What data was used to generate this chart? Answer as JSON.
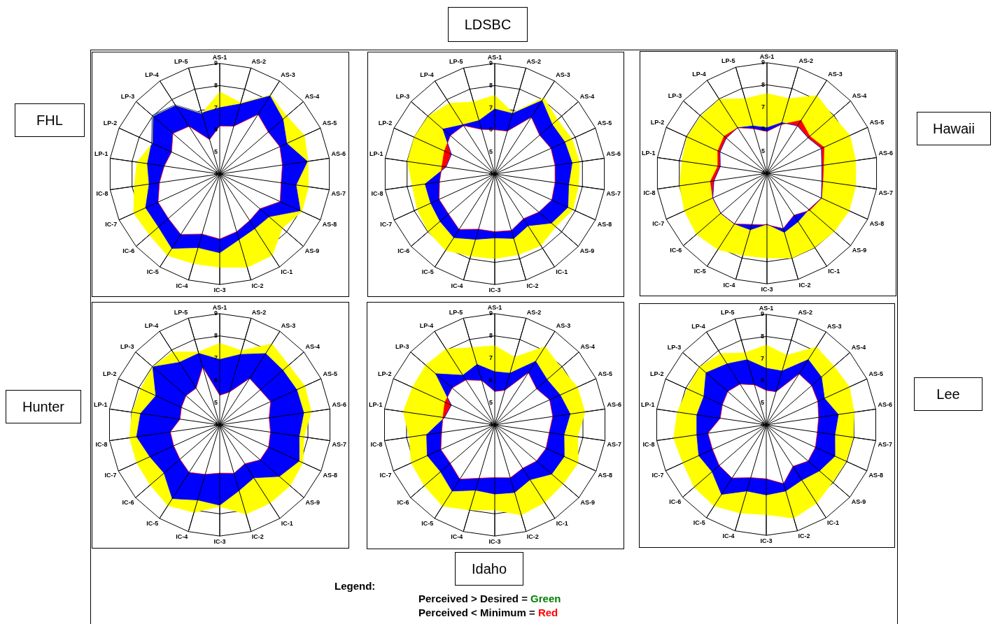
{
  "chart_data": [
    {
      "type": "radar",
      "title": "FHL",
      "categories": [
        "AS-1",
        "AS-2",
        "AS-3",
        "AS-4",
        "AS-5",
        "AS-6",
        "AS-7",
        "AS-8",
        "AS-9",
        "IC-1",
        "IC-2",
        "IC-3",
        "IC-4",
        "IC-5",
        "IC-6",
        "IC-7",
        "IC-8",
        "LP-1",
        "LP-2",
        "LP-3",
        "LP-4",
        "LP-5"
      ],
      "ylim": [
        4,
        9
      ],
      "yticks": [
        4,
        5,
        6,
        7,
        8,
        9
      ],
      "grid": true,
      "series": [
        {
          "color": "#ffff00",
          "values": [
            7.72,
            7.36,
            8.25,
            8.0,
            8.2,
            8.03,
            8.05,
            8.08,
            7.74,
            8.38,
            8.4,
            8.22,
            8.22,
            8.38,
            8.2,
            8.27,
            7.9,
            7.77,
            7.35,
            8.0,
            7.7,
            6.85
          ]
        },
        {
          "color": "#0000ff",
          "values": [
            7.0,
            7.3,
            8.2,
            7.78,
            7.33,
            8.0,
            7.48,
            8.0,
            6.95,
            6.93,
            7.09,
            7.56,
            7.47,
            8.0,
            7.66,
            7.68,
            7.22,
            7.3,
            7.38,
            8.04,
            7.72,
            6.88
          ]
        },
        {
          "color": "#ff0000",
          "values": [
            6.17,
            6.25,
            7.2,
            6.9,
            6.98,
            6.86,
            6.8,
            7.0,
            6.4,
            6.5,
            6.72,
            6.94,
            6.83,
            7.25,
            7.07,
            7.06,
            6.75,
            6.53,
            6.39,
            6.8,
            6.56,
            5.62
          ]
        }
      ]
    },
    {
      "type": "radar",
      "title": "LDSBC",
      "categories": [
        "AS-1",
        "AS-2",
        "AS-3",
        "AS-4",
        "AS-5",
        "AS-6",
        "AS-7",
        "AS-8",
        "AS-9",
        "IC-1",
        "IC-2",
        "IC-3",
        "IC-4",
        "IC-5",
        "IC-6",
        "IC-7",
        "IC-8",
        "LP-1",
        "LP-2",
        "LP-3",
        "LP-4",
        "LP-5"
      ],
      "ylim": [
        4,
        9
      ],
      "yticks": [
        4,
        5,
        6,
        7,
        8,
        9
      ],
      "grid": true,
      "series": [
        {
          "color": "#ffff00",
          "values": [
            7.56,
            6.89,
            8.1,
            7.75,
            7.83,
            7.87,
            7.82,
            7.88,
            7.64,
            7.85,
            7.8,
            7.83,
            7.87,
            8.1,
            7.98,
            7.85,
            7.76,
            7.98,
            8.0,
            7.98,
            7.8,
            7.4
          ]
        },
        {
          "color": "#0000ff",
          "values": [
            6.94,
            6.85,
            7.95,
            7.43,
            7.48,
            7.53,
            7.37,
            7.63,
            7.39,
            6.78,
            7.04,
            6.89,
            7.08,
            7.42,
            7.27,
            7.18,
            7.18,
            6.22,
            6.15,
            7.1,
            6.65,
            6.52
          ]
        },
        {
          "color": "#ff0000",
          "values": [
            6.0,
            6.02,
            7.05,
            6.68,
            6.79,
            6.75,
            6.75,
            6.83,
            6.63,
            6.4,
            6.66,
            6.61,
            6.6,
            6.98,
            6.76,
            6.76,
            6.52,
            6.41,
            6.5,
            6.65,
            6.6,
            6.1
          ]
        }
      ]
    },
    {
      "type": "radar",
      "title": "Hawaii",
      "categories": [
        "AS-1",
        "AS-2",
        "AS-3",
        "AS-4",
        "AS-5",
        "AS-6",
        "AS-7",
        "AS-8",
        "AS-9",
        "IC-1",
        "IC-2",
        "IC-3",
        "IC-4",
        "IC-5",
        "IC-6",
        "IC-7",
        "IC-8",
        "LP-1",
        "LP-2",
        "LP-3",
        "LP-4",
        "LP-5"
      ],
      "ylim": [
        4,
        9
      ],
      "yticks": [
        4,
        5,
        6,
        7,
        8,
        9
      ],
      "grid": true,
      "series": [
        {
          "color": "#ffff00",
          "values": [
            7.61,
            7.52,
            8.18,
            7.95,
            8.12,
            8.05,
            8.05,
            8.08,
            8.02,
            7.98,
            7.99,
            7.83,
            7.87,
            8.1,
            8.21,
            8.1,
            7.98,
            7.88,
            7.97,
            7.94,
            7.98,
            7.52
          ]
        },
        {
          "color": "#0000ff",
          "values": [
            6.06,
            6.39,
            6.55,
            6.45,
            6.7,
            6.5,
            6.5,
            6.7,
            6.5,
            6.6,
            6.78,
            6.3,
            6.66,
            6.72,
            6.76,
            6.69,
            6.42,
            6.13,
            6.33,
            6.43,
            6.45,
            6.23
          ]
        },
        {
          "color": "#ff0000",
          "values": [
            5.89,
            6.3,
            6.85,
            6.56,
            6.83,
            6.58,
            6.55,
            6.71,
            6.56,
            6.25,
            6.6,
            6.33,
            6.41,
            6.72,
            6.76,
            6.69,
            6.58,
            6.24,
            6.44,
            6.56,
            6.45,
            6.1
          ]
        }
      ]
    },
    {
      "type": "radar",
      "title": "Hunter",
      "categories": [
        "AS-1",
        "AS-2",
        "AS-3",
        "AS-4",
        "AS-5",
        "AS-6",
        "AS-7",
        "AS-8",
        "AS-9",
        "IC-1",
        "IC-2",
        "IC-3",
        "IC-4",
        "IC-5",
        "IC-6",
        "IC-7",
        "IC-8",
        "LP-1",
        "LP-2",
        "LP-3",
        "LP-4",
        "LP-5"
      ],
      "ylim": [
        4,
        9
      ],
      "yticks": [
        4,
        5,
        6,
        7,
        8,
        9
      ],
      "grid": true,
      "series": [
        {
          "color": "#ffff00",
          "values": [
            7.67,
            7.48,
            8.33,
            8.1,
            8.2,
            8.15,
            7.82,
            8.1,
            8.18,
            8.18,
            8.18,
            7.67,
            8.1,
            8.31,
            8.13,
            8.1,
            8.09,
            7.98,
            7.9,
            7.98,
            7.9,
            7.41
          ]
        },
        {
          "color": "#0000ff",
          "values": [
            6.94,
            7.3,
            7.81,
            7.75,
            7.8,
            7.81,
            7.6,
            7.92,
            7.54,
            6.83,
            7.08,
            7.61,
            7.52,
            7.94,
            7.31,
            7.45,
            7.77,
            7.59,
            7.15,
            7.98,
            7.34,
            7.35
          ]
        },
        {
          "color": "#ff0000",
          "values": [
            5.33,
            5.53,
            6.48,
            6.4,
            6.51,
            6.24,
            6.3,
            6.41,
            6.4,
            6.08,
            6.27,
            6.17,
            6.32,
            6.54,
            6.36,
            6.27,
            6.24,
            5.8,
            5.89,
            6.0,
            5.96,
            6.71
          ]
        }
      ]
    },
    {
      "type": "radar",
      "title": "Idaho",
      "categories": [
        "AS-1",
        "AS-2",
        "AS-3",
        "AS-4",
        "AS-5",
        "AS-6",
        "AS-7",
        "AS-8",
        "AS-9",
        "IC-1",
        "IC-2",
        "IC-3",
        "IC-4",
        "IC-5",
        "IC-6",
        "IC-7",
        "IC-8",
        "LP-1",
        "LP-2",
        "LP-3",
        "LP-4",
        "LP-5"
      ],
      "ylim": [
        4,
        9
      ],
      "yticks": [
        4,
        5,
        6,
        7,
        8,
        9
      ],
      "grid": true,
      "series": [
        {
          "color": "#ffff00",
          "values": [
            7.56,
            7.17,
            8.18,
            7.93,
            8.08,
            8.09,
            7.76,
            8.12,
            8.06,
            8.15,
            8.22,
            7.83,
            7.99,
            8.34,
            8.18,
            8.12,
            7.88,
            8.15,
            8.06,
            8.1,
            8.05,
            7.62
          ]
        },
        {
          "color": "#0000ff",
          "values": [
            6.39,
            6.42,
            7.4,
            7.11,
            7.23,
            7.42,
            7.14,
            7.43,
            7.38,
            6.93,
            7.17,
            7.11,
            7.06,
            7.54,
            7.22,
            7.33,
            7.09,
            6.28,
            6.14,
            7.51,
            6.65,
            6.83
          ]
        },
        {
          "color": "#ff0000",
          "values": [
            5.5,
            5.62,
            6.79,
            6.48,
            6.71,
            6.63,
            6.47,
            6.53,
            6.48,
            6.32,
            6.48,
            6.37,
            6.5,
            6.9,
            6.64,
            6.66,
            6.41,
            6.35,
            6.46,
            6.53,
            6.4,
            6.08
          ]
        }
      ]
    },
    {
      "type": "radar",
      "title": "Lee",
      "categories": [
        "AS-1",
        "AS-2",
        "AS-3",
        "AS-4",
        "AS-5",
        "AS-6",
        "AS-7",
        "AS-8",
        "AS-9",
        "IC-1",
        "IC-2",
        "IC-3",
        "IC-4",
        "IC-5",
        "IC-6",
        "IC-7",
        "IC-8",
        "LP-1",
        "LP-2",
        "LP-3",
        "LP-4",
        "LP-5"
      ],
      "ylim": [
        4,
        9
      ],
      "yticks": [
        4,
        5,
        6,
        7,
        8,
        9
      ],
      "grid": true,
      "series": [
        {
          "color": "#ffff00",
          "values": [
            7.61,
            7.28,
            8.19,
            8.05,
            8.13,
            8.01,
            7.97,
            7.96,
            7.96,
            8.21,
            8.4,
            8.06,
            8.16,
            8.36,
            8.31,
            8.14,
            8.23,
            8.06,
            7.92,
            7.99,
            7.83,
            7.4
          ]
        },
        {
          "color": "#0000ff",
          "values": [
            6.56,
            6.54,
            7.51,
            7.3,
            6.89,
            7.29,
            7.13,
            7.41,
            7.18,
            6.97,
            7.12,
            7.17,
            7.12,
            7.74,
            7.24,
            7.35,
            7.17,
            7.17,
            7.1,
            7.6,
            7.28,
            7.07
          ]
        },
        {
          "color": "#ff0000",
          "values": [
            5.56,
            5.56,
            6.74,
            6.71,
            6.56,
            6.39,
            6.33,
            6.44,
            6.5,
            6.23,
            6.77,
            6.44,
            6.49,
            6.86,
            6.81,
            6.67,
            6.66,
            6.1,
            6.18,
            6.3,
            6.19,
            5.89
          ]
        }
      ]
    },
    {
      "type": "other",
      "annotations": [
        "Legend:",
        "Perceived > Desired = Green",
        "Perceived < Minimum = Red"
      ]
    }
  ]
}
